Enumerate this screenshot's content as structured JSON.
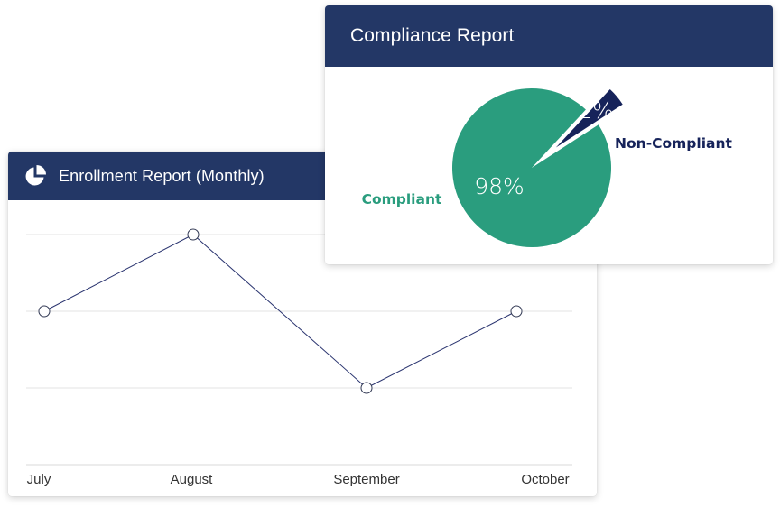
{
  "enrollment_card": {
    "title": "Enrollment Report (Monthly)",
    "icon": "pie-chart-icon"
  },
  "compliance_card": {
    "title": "Compliance Report"
  },
  "colors": {
    "header_bg": "#233766",
    "line": "#2b3570",
    "compliant": "#2a9d7e",
    "non_compliant": "#16235a",
    "grid": "#e3e3e3"
  },
  "chart_data": [
    {
      "type": "line",
      "title": "Enrollment Report (Monthly)",
      "categories": [
        "July",
        "August",
        "September",
        "October"
      ],
      "series": [
        {
          "values": [
            2,
            3,
            1,
            2
          ]
        }
      ],
      "ylim": [
        0,
        3
      ],
      "grid": true,
      "xlabel": "",
      "ylabel": ""
    },
    {
      "type": "pie",
      "title": "Compliance Report",
      "slices": [
        {
          "label": "Compliant",
          "value": 98,
          "display": "98%"
        },
        {
          "label": "Non-Compliant",
          "value": 2,
          "display": "2%",
          "exploded": true
        }
      ]
    }
  ]
}
